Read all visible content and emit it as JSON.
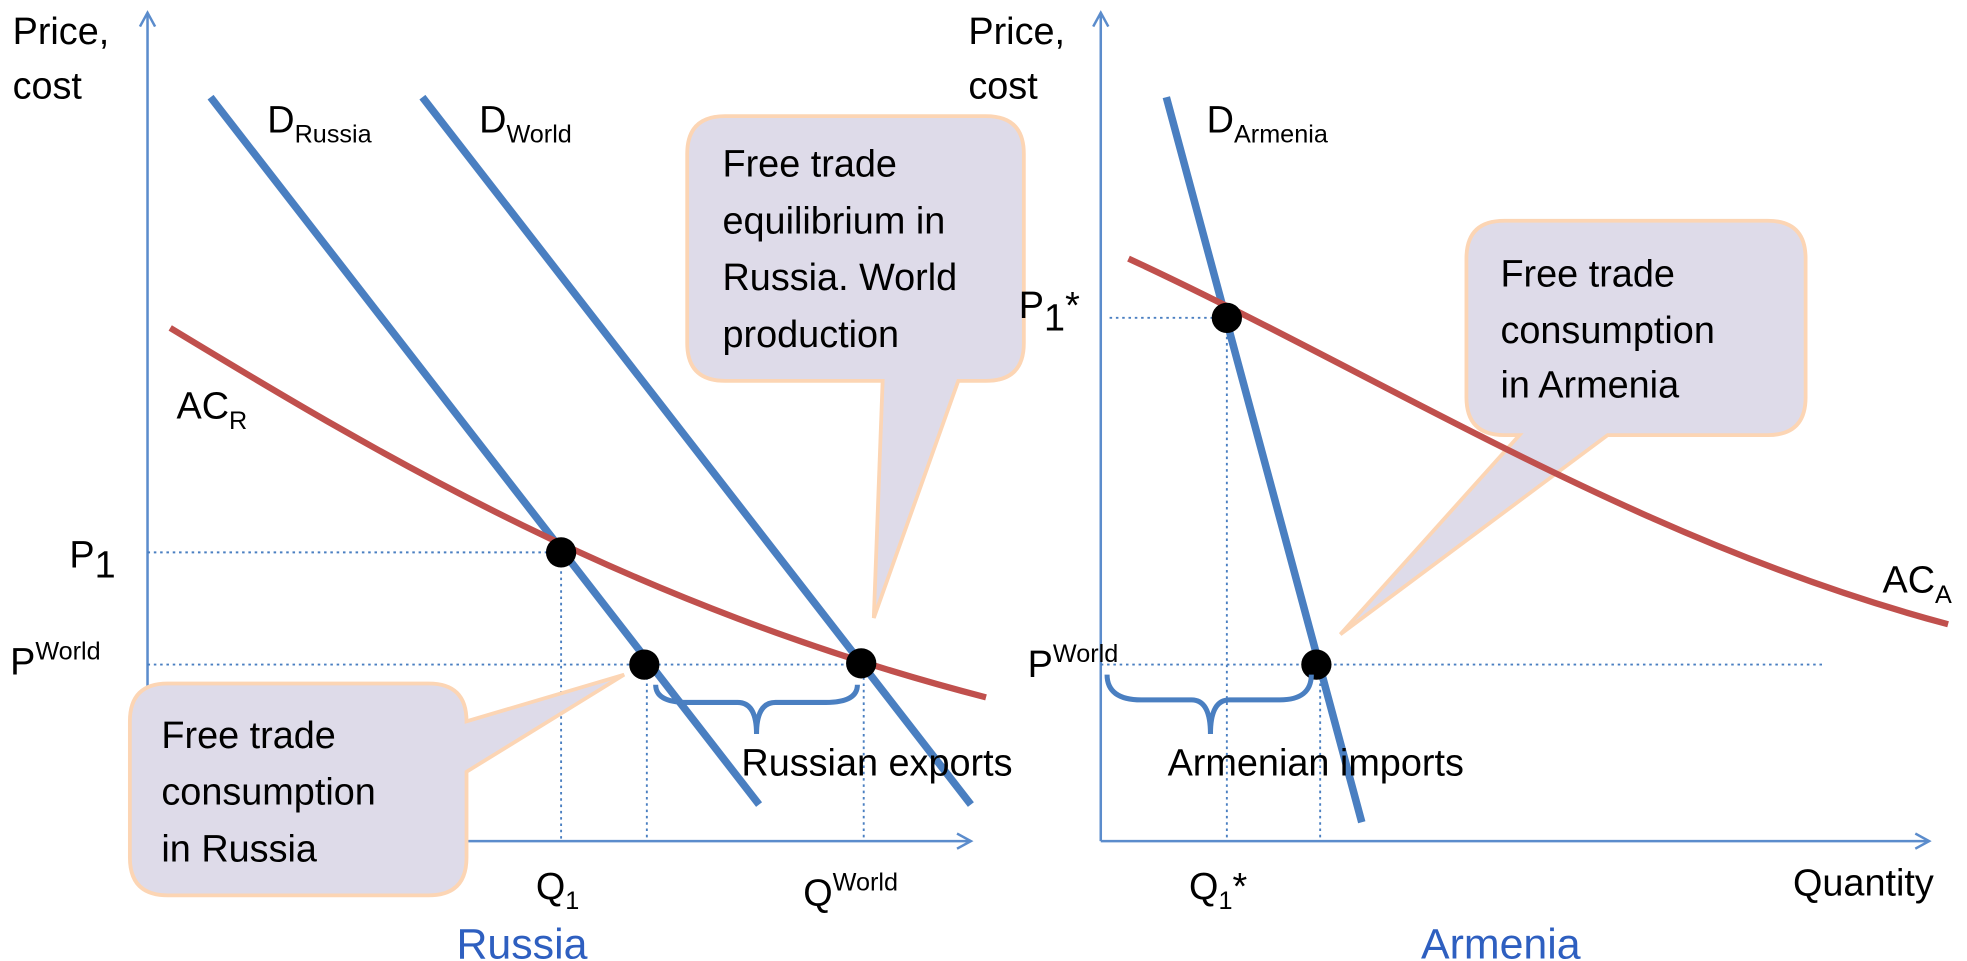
{
  "left": {
    "axis_label": [
      "Price,",
      "cost"
    ],
    "demand_russia": {
      "base": "D",
      "sub": "Russia"
    },
    "demand_world": {
      "base": "D",
      "sub": "World"
    },
    "cost": {
      "base": "AC",
      "sub": "R"
    },
    "p1": {
      "base": "P",
      "sub": "1"
    },
    "p_world": {
      "base": "P",
      "sup": "World"
    },
    "q1": {
      "base": "Q",
      "sub": "1"
    },
    "q_world": {
      "base": "Q",
      "sup": "World"
    },
    "exports_label": "Russian exports",
    "callout_equilibrium": [
      "Free trade",
      "equilibrium in",
      "Russia. World",
      "production"
    ],
    "callout_consumption": [
      "Free trade",
      "consumption",
      "in Russia"
    ],
    "panel_label": "Russia"
  },
  "right": {
    "axis_label": [
      "Price,",
      "cost"
    ],
    "demand": {
      "base": "D",
      "sub": "Armenia"
    },
    "cost": {
      "base": "AC",
      "sub": "A"
    },
    "p1": {
      "base": "P",
      "sub": "1",
      "suffix": "*"
    },
    "p_world": {
      "base": "P",
      "sup": "World"
    },
    "q1": {
      "base": "Q",
      "sub": "1",
      "suffix": "*"
    },
    "x_axis_label": "Quantity",
    "imports_label": "Armenian imports",
    "callout_consumption": [
      "Free trade",
      "consumption",
      "in Armenia"
    ],
    "panel_label": "Armenia"
  }
}
